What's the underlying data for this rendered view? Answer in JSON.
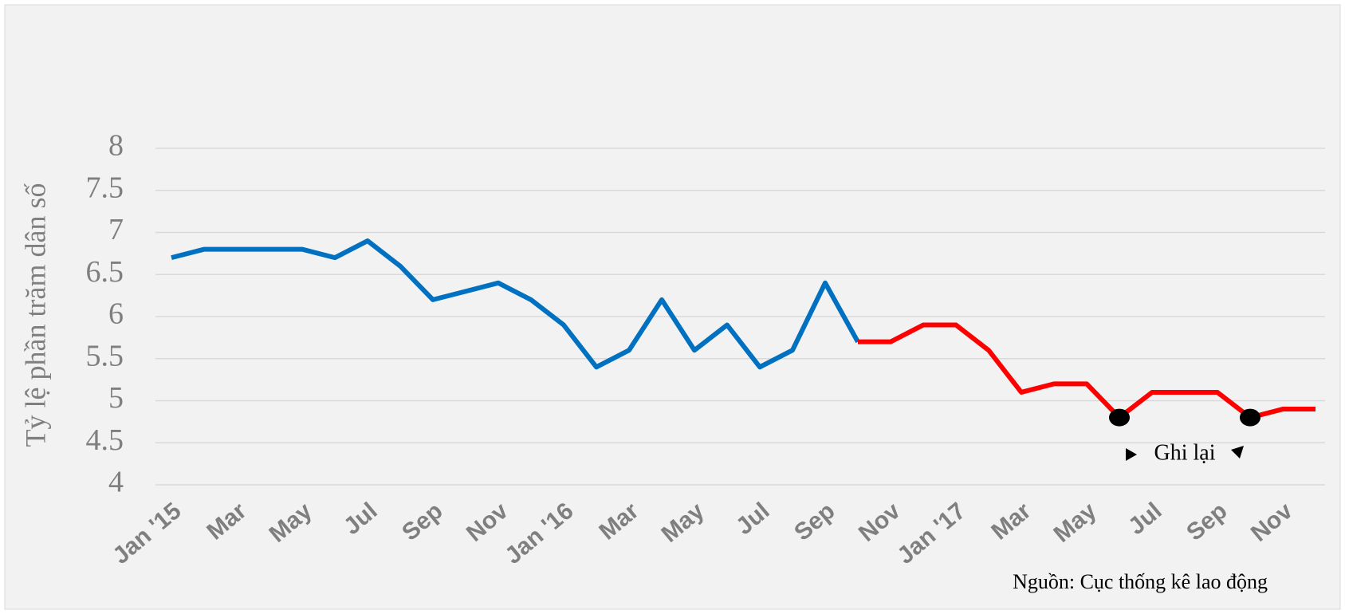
{
  "chart_data": {
    "type": "line",
    "y_label": "Tỷ lệ phần trăm dân số",
    "source": "Nguồn: Cục thống kê lao động",
    "categories": [
      "Jan '15",
      null,
      "Mar",
      null,
      "May",
      null,
      "Jul",
      null,
      "Sep",
      null,
      "Nov",
      null,
      "Jan '16",
      null,
      "Mar",
      null,
      "May",
      null,
      "Jul",
      null,
      "Sep",
      null,
      "Nov",
      null,
      "Jan '17",
      null,
      "Mar",
      null,
      "May",
      null,
      "Jul",
      null,
      "Sep",
      null,
      "Nov",
      null
    ],
    "series": [
      {
        "color": "#0070c0",
        "style": "line",
        "values": [
          6.7,
          6.8,
          6.8,
          6.8,
          6.8,
          6.7,
          6.9,
          6.6,
          6.2,
          6.3,
          6.4,
          6.2,
          5.9,
          5.4,
          5.6,
          6.2,
          5.6,
          5.9,
          5.4,
          5.6,
          6.4,
          5.7,
          null,
          null,
          null,
          null,
          null,
          null,
          null,
          null,
          null,
          null,
          null,
          null,
          null,
          null
        ]
      },
      {
        "color": "#ff0000",
        "style": "line",
        "values": [
          null,
          null,
          null,
          null,
          null,
          null,
          null,
          null,
          null,
          null,
          null,
          null,
          null,
          null,
          null,
          null,
          null,
          null,
          null,
          null,
          null,
          5.7,
          5.7,
          5.9,
          5.9,
          5.6,
          5.1,
          5.2,
          5.2,
          4.8,
          5.1,
          5.1,
          5.1,
          4.8,
          4.9,
          4.9
        ]
      },
      {
        "name": "Ghi lại",
        "color": "#000000",
        "style": "marker",
        "values": [
          null,
          null,
          null,
          null,
          null,
          null,
          null,
          null,
          null,
          null,
          null,
          null,
          null,
          null,
          null,
          null,
          null,
          null,
          null,
          null,
          null,
          null,
          null,
          null,
          null,
          null,
          null,
          null,
          null,
          4.8,
          null,
          null,
          null,
          4.8,
          null,
          null
        ]
      }
    ],
    "ylim": [
      4,
      8
    ],
    "yticks": [
      4,
      4.5,
      5,
      5.5,
      6,
      6.5,
      7,
      7.5,
      8
    ],
    "grid": true
  }
}
